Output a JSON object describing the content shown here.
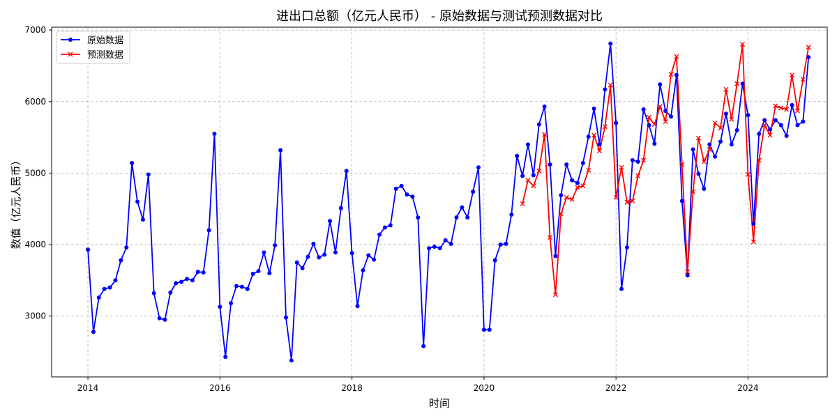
{
  "chart_data": {
    "type": "line",
    "title": "进出口总额（亿元人民币） - 原始数据与测试预测数据对比",
    "xlabel": "时间",
    "ylabel": "数值（亿元人民币）",
    "xlim": [
      2013.45,
      2025.2
    ],
    "ylim": [
      2150,
      7040
    ],
    "xticks": [
      2014,
      2016,
      2018,
      2020,
      2022,
      2024
    ],
    "xtick_labels": [
      "2014",
      "2016",
      "2018",
      "2020",
      "2022",
      "2024"
    ],
    "yticks": [
      3000,
      4000,
      5000,
      6000,
      7000
    ],
    "ytick_labels": [
      "3000",
      "4000",
      "5000",
      "6000",
      "7000"
    ],
    "grid": true,
    "legend_position": "top-left",
    "series": [
      {
        "name": "原始数据",
        "color": "#0000ff",
        "marker": "circle",
        "start": "2014-01",
        "values": [
          3930,
          2780,
          3260,
          3380,
          3400,
          3500,
          3780,
          3960,
          5140,
          4600,
          4350,
          4980,
          3320,
          2970,
          2950,
          3330,
          3460,
          3480,
          3520,
          3500,
          3620,
          3610,
          4200,
          5550,
          3130,
          2430,
          3180,
          3420,
          3410,
          3380,
          3590,
          3630,
          3890,
          3600,
          3990,
          5320,
          2980,
          2380,
          3750,
          3670,
          3830,
          4010,
          3820,
          3860,
          4330,
          3890,
          4510,
          5030,
          3880,
          3140,
          3640,
          3850,
          3790,
          4140,
          4240,
          4270,
          4780,
          4820,
          4700,
          4670,
          4380,
          2580,
          3950,
          3970,
          3950,
          4060,
          4010,
          4380,
          4520,
          4380,
          4740,
          5080,
          2810,
          2810,
          3780,
          4000,
          4010,
          4420,
          5240,
          4960,
          5400,
          4970,
          5680,
          5930,
          5120,
          3840,
          4690,
          5120,
          4900,
          4860,
          5140,
          5510,
          5900,
          5400,
          6170,
          6810,
          5700,
          3380,
          3960,
          5180,
          5160,
          5890,
          5670,
          5410,
          6240,
          5870,
          5790,
          6370,
          4610,
          3570,
          5330,
          4990,
          4780,
          5400,
          5230,
          5440,
          5830,
          5400,
          5600,
          6250,
          5810,
          4290,
          5550,
          5740,
          5610,
          5740,
          5670,
          5520,
          5950,
          5670,
          5720,
          6620
        ]
      },
      {
        "name": "预测数据",
        "color": "#ff0000",
        "marker": "x",
        "start": "2020-08",
        "values": [
          4570,
          4900,
          4820,
          5030,
          5540,
          4100,
          3300,
          4430,
          4660,
          4630,
          4800,
          4820,
          5040,
          5530,
          5310,
          5650,
          6230,
          4660,
          5080,
          4590,
          4610,
          4960,
          5180,
          5780,
          5680,
          5930,
          5720,
          6380,
          6630,
          5120,
          3620,
          4740,
          5490,
          5160,
          5330,
          5700,
          5630,
          6170,
          5750,
          6250,
          6800,
          4980,
          4040,
          5180,
          5670,
          5530,
          5940,
          5910,
          5890,
          6370,
          5870,
          6310,
          6760
        ]
      }
    ]
  }
}
